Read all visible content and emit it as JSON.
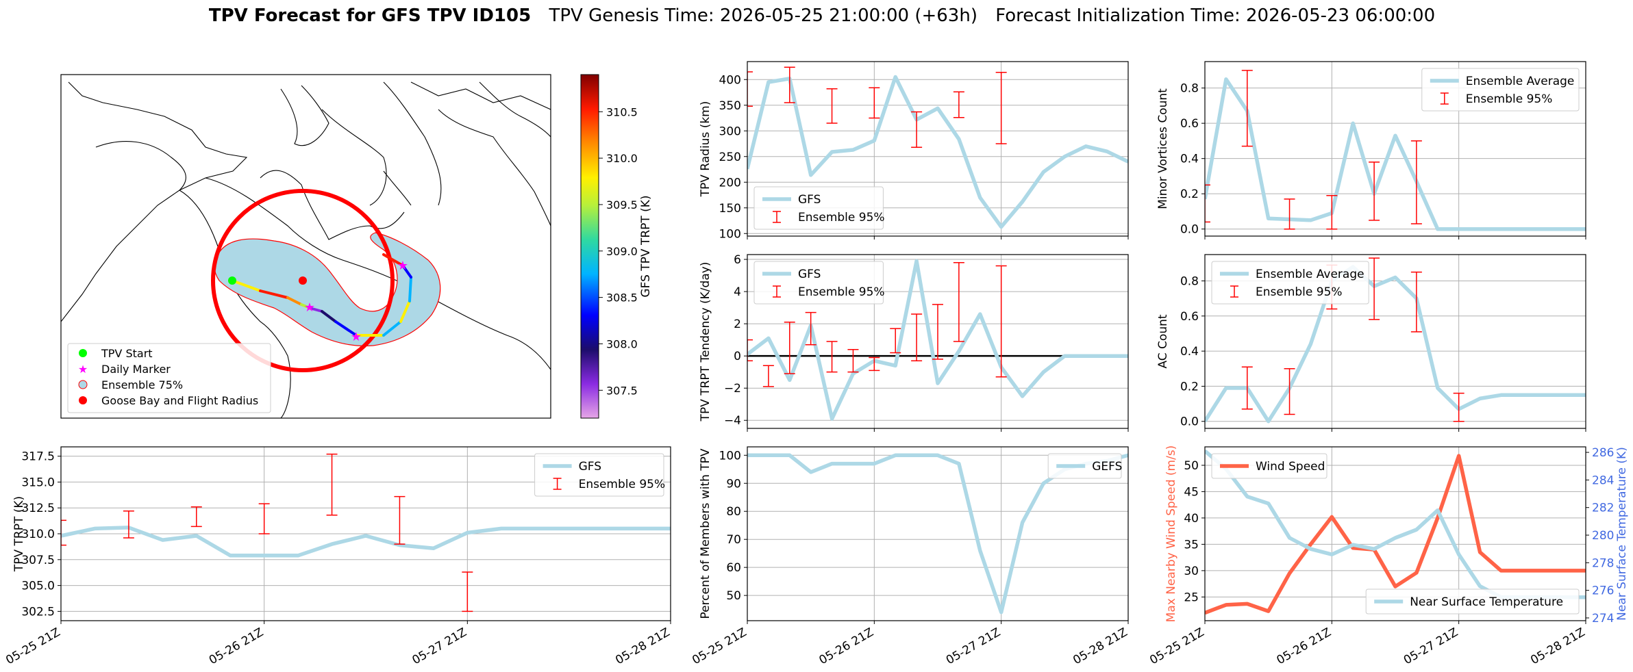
{
  "title": {
    "main": "TPV Forecast for GFS TPV ID105",
    "genesis": "TPV Genesis Time: 2026-05-25 21:00:00 (+63h)",
    "init": "Forecast Initialization Time: 2026-05-23 06:00:00"
  },
  "colors": {
    "gfs": "#add8e6",
    "ensemble": "#ff0000",
    "wind": "#ff6347",
    "temp_axis": "#4169e1",
    "grid": "#b0b0b0"
  },
  "time_ticks": [
    "05-25 21Z",
    "05-26 21Z",
    "05-27 21Z",
    "05-28 21Z"
  ],
  "chart_data": [
    {
      "id": "map",
      "type": "scatter",
      "description": "Map of TPV track colored by GFS TPV TRPT with ensemble 75% region",
      "legend": [
        "TPV Start",
        "Daily Marker",
        "Ensemble 75%",
        "Goose Bay and Flight Radius"
      ],
      "colorbar": {
        "label": "GFS TPV TRPT (K)",
        "ticks": [
          "307.5",
          "308.0",
          "308.5",
          "309.0",
          "309.5",
          "310.0",
          "310.5"
        ],
        "range": [
          307.2,
          310.9
        ]
      }
    },
    {
      "id": "radius",
      "type": "line",
      "ylabel": "TPV Radius (km)",
      "yticks": [
        "100",
        "150",
        "200",
        "250",
        "300",
        "350",
        "400"
      ],
      "ylim": [
        95,
        435
      ],
      "xlim": [
        0,
        18
      ],
      "legend": [
        "GFS",
        "Ensemble 95%"
      ],
      "legend_loc": "lower-left",
      "series": [
        {
          "name": "GFS",
          "x": [
            0,
            1,
            2,
            3,
            4,
            5,
            6,
            7,
            8,
            9,
            10,
            11,
            12,
            13,
            14,
            15,
            16,
            17,
            18
          ],
          "values": [
            226,
            395,
            402,
            214,
            259,
            263,
            281,
            405,
            322,
            344,
            284,
            170,
            113,
            162,
            220,
            250,
            270,
            260,
            240
          ]
        }
      ],
      "ensemble_95": [
        {
          "x": 0,
          "low": 348,
          "high": 415
        },
        {
          "x": 2,
          "low": 355,
          "high": 424
        },
        {
          "x": 4,
          "low": 315,
          "high": 382
        },
        {
          "x": 6,
          "low": 325,
          "high": 384
        },
        {
          "x": 8,
          "low": 268,
          "high": 337
        },
        {
          "x": 10,
          "low": 326,
          "high": 376
        },
        {
          "x": 12,
          "low": 275,
          "high": 414
        }
      ]
    },
    {
      "id": "minor",
      "type": "line",
      "ylabel": "Minor Vortices Count",
      "yticks": [
        "0.0",
        "0.2",
        "0.4",
        "0.6",
        "0.8"
      ],
      "ylim": [
        -0.04,
        0.95
      ],
      "xlim": [
        0,
        18
      ],
      "legend": [
        "Ensemble Average",
        "Ensemble 95%"
      ],
      "legend_loc": "upper-right",
      "series": [
        {
          "name": "Ensemble Average",
          "x": [
            0,
            1,
            2,
            3,
            4,
            5,
            6,
            7,
            8,
            9,
            10,
            11,
            12,
            13,
            14,
            15,
            16,
            17,
            18
          ],
          "values": [
            0.17,
            0.85,
            0.67,
            0.06,
            0.055,
            0.05,
            0.09,
            0.6,
            0.2,
            0.53,
            0.27,
            0.0,
            0.0,
            0.0,
            0.0,
            0.0,
            0.0,
            0.0,
            0.0
          ]
        }
      ],
      "ensemble_95": [
        {
          "x": 0,
          "low": 0.04,
          "high": 0.25
        },
        {
          "x": 2,
          "low": 0.47,
          "high": 0.9
        },
        {
          "x": 4,
          "low": 0.0,
          "high": 0.17
        },
        {
          "x": 6,
          "low": 0.0,
          "high": 0.19
        },
        {
          "x": 8,
          "low": 0.05,
          "high": 0.38
        },
        {
          "x": 10,
          "low": 0.03,
          "high": 0.5
        }
      ]
    },
    {
      "id": "tendency",
      "type": "line",
      "ylabel": "TPV TRPT Tendency (K/day)",
      "yticks": [
        "−4",
        "−2",
        "0",
        "2",
        "4",
        "6"
      ],
      "ylim": [
        -4.5,
        6.3
      ],
      "xlim": [
        0,
        18
      ],
      "legend": [
        "GFS",
        "Ensemble 95%"
      ],
      "legend_loc": "upper-left",
      "zero_line": 0,
      "series": [
        {
          "name": "GFS",
          "x": [
            0,
            1,
            2,
            3,
            4,
            5,
            6,
            7,
            8,
            9,
            10,
            11,
            12,
            13,
            14,
            15,
            16,
            17,
            18
          ],
          "values": [
            0.1,
            1.1,
            -1.5,
            1.9,
            -3.9,
            -1.1,
            -0.3,
            -0.6,
            5.9,
            -1.7,
            0.3,
            2.6,
            -0.7,
            -2.5,
            -1.0,
            0.0,
            0.0,
            0.0,
            0.0
          ]
        }
      ],
      "ensemble_95": [
        {
          "x": 0,
          "low": -0.3,
          "high": 1.0
        },
        {
          "x": 1,
          "low": -1.9,
          "high": -0.6
        },
        {
          "x": 2,
          "low": -1.1,
          "high": 2.1
        },
        {
          "x": 3,
          "low": 0.7,
          "high": 2.7
        },
        {
          "x": 4,
          "low": -1.0,
          "high": 0.9
        },
        {
          "x": 5,
          "low": -1.0,
          "high": 0.4
        },
        {
          "x": 6,
          "low": -0.9,
          "high": -0.1
        },
        {
          "x": 7,
          "low": 0.2,
          "high": 1.7
        },
        {
          "x": 8,
          "low": -0.3,
          "high": 2.6
        },
        {
          "x": 9,
          "low": -0.2,
          "high": 3.2
        },
        {
          "x": 10,
          "low": 0.9,
          "high": 5.8
        },
        {
          "x": 12,
          "low": -1.3,
          "high": 5.6
        }
      ]
    },
    {
      "id": "ac",
      "type": "line",
      "ylabel": "AC Count",
      "yticks": [
        "0.0",
        "0.2",
        "0.4",
        "0.6",
        "0.8"
      ],
      "ylim": [
        -0.04,
        0.95
      ],
      "xlim": [
        0,
        18
      ],
      "legend": [
        "Ensemble Average",
        "Ensemble 95%"
      ],
      "legend_loc": "upper-left",
      "series": [
        {
          "name": "Ensemble Average",
          "x": [
            0,
            1,
            2,
            3,
            4,
            5,
            6,
            7,
            8,
            9,
            10,
            11,
            12,
            13,
            14,
            15,
            16,
            17,
            18
          ],
          "values": [
            0.0,
            0.19,
            0.19,
            0.0,
            0.19,
            0.44,
            0.8,
            0.88,
            0.77,
            0.82,
            0.7,
            0.19,
            0.07,
            0.13,
            0.15,
            0.15,
            0.15,
            0.15,
            0.15
          ]
        }
      ],
      "ensemble_95": [
        {
          "x": 2,
          "low": 0.07,
          "high": 0.31
        },
        {
          "x": 4,
          "low": 0.04,
          "high": 0.3
        },
        {
          "x": 6,
          "low": 0.64,
          "high": 0.89
        },
        {
          "x": 8,
          "low": 0.58,
          "high": 0.93
        },
        {
          "x": 10,
          "low": 0.51,
          "high": 0.85
        },
        {
          "x": 12,
          "low": 0.0,
          "high": 0.16
        }
      ]
    },
    {
      "id": "trpt",
      "type": "line",
      "ylabel": "TPV TRPT (K)",
      "yticks": [
        "302.5",
        "305.0",
        "307.5",
        "310.0",
        "312.5",
        "315.0",
        "317.5"
      ],
      "ylim": [
        301.6,
        318.4
      ],
      "xlim": [
        0,
        18
      ],
      "legend": [
        "GFS",
        "Ensemble 95%"
      ],
      "legend_loc": "upper-right",
      "series": [
        {
          "name": "GFS",
          "x": [
            0,
            1,
            2,
            3,
            4,
            5,
            6,
            7,
            8,
            9,
            10,
            11,
            12,
            13,
            14,
            15,
            16,
            17,
            18
          ],
          "values": [
            309.8,
            310.5,
            310.6,
            309.4,
            309.8,
            307.9,
            307.9,
            307.9,
            309.0,
            309.8,
            308.9,
            308.6,
            310.1,
            310.5,
            310.5,
            310.5,
            310.5,
            310.5,
            310.5
          ]
        }
      ],
      "ensemble_95": [
        {
          "x": 0,
          "low": 308.9,
          "high": 311.3
        },
        {
          "x": 2,
          "low": 309.6,
          "high": 312.2
        },
        {
          "x": 4,
          "low": 310.7,
          "high": 312.6
        },
        {
          "x": 6,
          "low": 310.0,
          "high": 312.9
        },
        {
          "x": 8,
          "low": 311.8,
          "high": 317.7
        },
        {
          "x": 10,
          "low": 309.0,
          "high": 313.6
        },
        {
          "x": 12,
          "low": 302.5,
          "high": 306.3
        }
      ]
    },
    {
      "id": "members",
      "type": "line",
      "ylabel": "Percent of Members with TPV",
      "yticks": [
        "50",
        "60",
        "70",
        "80",
        "90",
        "100"
      ],
      "ylim": [
        41,
        103
      ],
      "xlim": [
        0,
        18
      ],
      "legend": [
        "GEFS"
      ],
      "legend_loc": "upper-right",
      "series": [
        {
          "name": "GEFS",
          "x": [
            0,
            1,
            2,
            3,
            4,
            5,
            6,
            7,
            8,
            9,
            10,
            11,
            12,
            13,
            14,
            15,
            16,
            17,
            18
          ],
          "values": [
            100,
            100,
            100,
            94,
            97,
            97,
            97,
            100,
            100,
            100,
            97,
            66,
            44,
            76,
            90,
            95,
            97,
            98,
            100
          ]
        }
      ]
    },
    {
      "id": "wind_temp",
      "type": "line",
      "ylabel": "Max Nearby Wind Speed (m/s)",
      "ylabel_right": "Near Surface Temperature (K)",
      "yticks": [
        "25",
        "30",
        "35",
        "40",
        "45",
        "50"
      ],
      "yticks_right": [
        "274",
        "276",
        "278",
        "280",
        "282",
        "284",
        "286"
      ],
      "ylim": [
        20.5,
        53.5
      ],
      "ylim_right": [
        273.8,
        286.4
      ],
      "xlim": [
        0,
        18
      ],
      "legend_left": [
        "Wind Speed"
      ],
      "legend_right": [
        "Near Surface Temperature"
      ],
      "series": [
        {
          "name": "Wind Speed",
          "axis": "left",
          "x": [
            0,
            1,
            2,
            3,
            4,
            5,
            6,
            7,
            8,
            9,
            10,
            11,
            12,
            13,
            14,
            15,
            16,
            17,
            18
          ],
          "values": [
            22.0,
            23.5,
            23.7,
            22.3,
            29.5,
            35.0,
            40.2,
            34.3,
            34.0,
            27.0,
            29.6,
            40.0,
            51.8,
            33.5,
            30.0,
            30.0,
            30.0,
            30.0,
            30.0
          ]
        },
        {
          "name": "Near Surface Temperature",
          "axis": "right",
          "x": [
            0,
            1,
            2,
            3,
            4,
            5,
            6,
            7,
            8,
            9,
            10,
            11,
            12,
            13,
            14,
            15,
            16,
            17,
            18
          ],
          "values": [
            286.1,
            284.8,
            282.8,
            282.3,
            279.8,
            279.0,
            278.6,
            279.3,
            279.0,
            279.8,
            280.4,
            281.8,
            278.6,
            276.3,
            275.5,
            275.5,
            275.5,
            275.5,
            275.5
          ]
        }
      ]
    }
  ]
}
